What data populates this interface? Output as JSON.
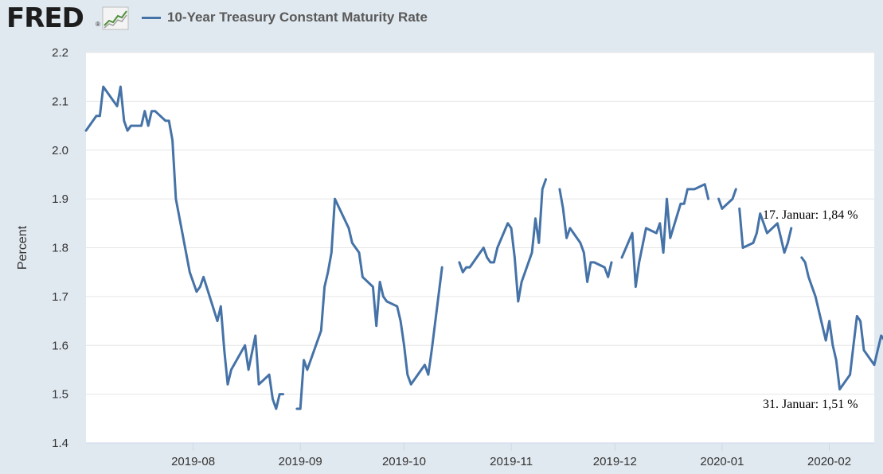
{
  "header": {
    "logo_text": "FRED",
    "logo_reg": "®",
    "legend_label": "10-Year Treasury Constant Maturity Rate"
  },
  "chart_data": {
    "type": "line",
    "ylabel": "Percent",
    "ylim": [
      1.4,
      2.2
    ],
    "yticks": [
      1.4,
      1.5,
      1.6,
      1.7,
      1.8,
      1.9,
      2.0,
      2.1,
      2.2
    ],
    "ytick_labels": [
      "1.4",
      "1.5",
      "1.6",
      "1.7",
      "1.8",
      "1.9",
      "2.0",
      "2.1",
      "2.2"
    ],
    "xlim": [
      "2019-07-01",
      "2020-02-14"
    ],
    "xticks": [
      "2019-08-01",
      "2019-09-01",
      "2019-10-01",
      "2019-11-01",
      "2019-12-01",
      "2020-01-01",
      "2020-02-01"
    ],
    "xtick_labels": [
      "2019-08",
      "2019-09",
      "2019-10",
      "2019-11",
      "2019-12",
      "2020-01",
      "2020-02"
    ],
    "grid": true,
    "line_color": "#4572a7",
    "series": [
      {
        "name": "10-Year Treasury Constant Maturity Rate",
        "segments": [
          [
            [
              "2019-07-01",
              2.04
            ],
            [
              "2019-07-02",
              2.05
            ],
            [
              "2019-07-04",
              2.07
            ],
            [
              "2019-07-05",
              2.07
            ],
            [
              "2019-07-06",
              2.13
            ],
            [
              "2019-07-10",
              2.09
            ],
            [
              "2019-07-11",
              2.13
            ],
            [
              "2019-07-12",
              2.06
            ],
            [
              "2019-07-13",
              2.04
            ],
            [
              "2019-07-14",
              2.05
            ],
            [
              "2019-07-17",
              2.05
            ],
            [
              "2019-07-18",
              2.08
            ],
            [
              "2019-07-19",
              2.05
            ],
            [
              "2019-07-20",
              2.08
            ],
            [
              "2019-07-21",
              2.08
            ],
            [
              "2019-07-24",
              2.06
            ],
            [
              "2019-07-25",
              2.06
            ],
            [
              "2019-07-26",
              2.02
            ],
            [
              "2019-07-27",
              1.9
            ],
            [
              "2019-07-31",
              1.75
            ],
            [
              "2019-08-02",
              1.71
            ],
            [
              "2019-08-03",
              1.72
            ],
            [
              "2019-08-04",
              1.74
            ],
            [
              "2019-08-08",
              1.65
            ],
            [
              "2019-08-09",
              1.68
            ],
            [
              "2019-08-10",
              1.59
            ],
            [
              "2019-08-11",
              1.52
            ],
            [
              "2019-08-12",
              1.55
            ],
            [
              "2019-08-16",
              1.6
            ],
            [
              "2019-08-17",
              1.55
            ],
            [
              "2019-08-19",
              1.62
            ],
            [
              "2019-08-20",
              1.52
            ],
            [
              "2019-08-23",
              1.54
            ],
            [
              "2019-08-24",
              1.49
            ],
            [
              "2019-08-25",
              1.47
            ],
            [
              "2019-08-26",
              1.5
            ],
            [
              "2019-08-27",
              1.5
            ]
          ],
          [
            [
              "2019-08-31",
              1.47
            ],
            [
              "2019-09-01",
              1.47
            ],
            [
              "2019-09-02",
              1.57
            ],
            [
              "2019-09-03",
              1.55
            ],
            [
              "2019-09-07",
              1.63
            ],
            [
              "2019-09-08",
              1.72
            ],
            [
              "2019-09-09",
              1.75
            ],
            [
              "2019-09-10",
              1.79
            ],
            [
              "2019-09-11",
              1.9
            ],
            [
              "2019-09-15",
              1.84
            ],
            [
              "2019-09-16",
              1.81
            ],
            [
              "2019-09-18",
              1.79
            ],
            [
              "2019-09-19",
              1.74
            ],
            [
              "2019-09-22",
              1.72
            ],
            [
              "2019-09-23",
              1.64
            ],
            [
              "2019-09-24",
              1.73
            ],
            [
              "2019-09-25",
              1.7
            ],
            [
              "2019-09-26",
              1.69
            ],
            [
              "2019-09-29",
              1.68
            ],
            [
              "2019-09-30",
              1.65
            ],
            [
              "2019-10-01",
              1.6
            ],
            [
              "2019-10-02",
              1.54
            ],
            [
              "2019-10-03",
              1.52
            ],
            [
              "2019-10-07",
              1.56
            ],
            [
              "2019-10-08",
              1.54
            ],
            [
              "2019-10-09",
              1.59
            ],
            [
              "2019-10-12",
              1.76
            ]
          ],
          [
            [
              "2019-10-17",
              1.77
            ],
            [
              "2019-10-18",
              1.75
            ],
            [
              "2019-10-19",
              1.76
            ],
            [
              "2019-10-20",
              1.76
            ],
            [
              "2019-10-24",
              1.8
            ],
            [
              "2019-10-25",
              1.78
            ],
            [
              "2019-10-26",
              1.77
            ],
            [
              "2019-10-27",
              1.77
            ],
            [
              "2019-10-28",
              1.8
            ],
            [
              "2019-10-31",
              1.85
            ],
            [
              "2019-11-01",
              1.84
            ],
            [
              "2019-11-02",
              1.78
            ],
            [
              "2019-11-03",
              1.69
            ],
            [
              "2019-11-04",
              1.73
            ],
            [
              "2019-11-07",
              1.79
            ],
            [
              "2019-11-08",
              1.86
            ],
            [
              "2019-11-09",
              1.81
            ],
            [
              "2019-11-10",
              1.92
            ],
            [
              "2019-11-11",
              1.94
            ]
          ],
          [
            [
              "2019-11-15",
              1.92
            ],
            [
              "2019-11-16",
              1.88
            ],
            [
              "2019-11-17",
              1.82
            ],
            [
              "2019-11-18",
              1.84
            ],
            [
              "2019-11-21",
              1.81
            ],
            [
              "2019-11-22",
              1.79
            ],
            [
              "2019-11-23",
              1.73
            ],
            [
              "2019-11-24",
              1.77
            ],
            [
              "2019-11-25",
              1.77
            ],
            [
              "2019-11-28",
              1.76
            ],
            [
              "2019-11-29",
              1.74
            ],
            [
              "2019-11-30",
              1.77
            ]
          ],
          [
            [
              "2019-12-03",
              1.78
            ],
            [
              "2019-12-06",
              1.83
            ],
            [
              "2019-12-07",
              1.72
            ],
            [
              "2019-12-08",
              1.77
            ],
            [
              "2019-12-10",
              1.84
            ],
            [
              "2019-12-13",
              1.83
            ],
            [
              "2019-12-14",
              1.85
            ],
            [
              "2019-12-15",
              1.79
            ],
            [
              "2019-12-16",
              1.9
            ],
            [
              "2019-12-17",
              1.82
            ],
            [
              "2019-12-20",
              1.89
            ],
            [
              "2019-12-21",
              1.89
            ],
            [
              "2019-12-22",
              1.92
            ],
            [
              "2019-12-24",
              1.92
            ],
            [
              "2019-12-27",
              1.93
            ],
            [
              "2019-12-28",
              1.9
            ]
          ],
          [
            [
              "2019-12-31",
              1.9
            ],
            [
              "2020-01-01",
              1.88
            ],
            [
              "2020-01-04",
              1.9
            ],
            [
              "2020-01-05",
              1.92
            ]
          ],
          [
            [
              "2020-01-06",
              1.88
            ],
            [
              "2020-01-07",
              1.8
            ],
            [
              "2020-01-10",
              1.81
            ],
            [
              "2020-01-11",
              1.83
            ],
            [
              "2020-01-12",
              1.87
            ],
            [
              "2020-01-13",
              1.85
            ],
            [
              "2020-01-14",
              1.83
            ],
            [
              "2020-01-17",
              1.85
            ],
            [
              "2020-01-18",
              1.82
            ],
            [
              "2020-01-19",
              1.79
            ],
            [
              "2020-01-20",
              1.81
            ],
            [
              "2020-01-21",
              1.84
            ]
          ],
          [
            [
              "2020-01-24",
              1.78
            ],
            [
              "2020-01-25",
              1.77
            ],
            [
              "2020-01-26",
              1.74
            ],
            [
              "2020-01-28",
              1.7
            ],
            [
              "2020-01-31",
              1.61
            ],
            [
              "2020-02-01",
              1.65
            ],
            [
              "2020-02-02",
              1.6
            ],
            [
              "2020-02-03",
              1.57
            ],
            [
              "2020-02-04",
              1.51
            ],
            [
              "2020-02-07",
              1.54
            ],
            [
              "2020-02-08",
              1.6
            ],
            [
              "2020-02-09",
              1.66
            ],
            [
              "2020-02-10",
              1.65
            ],
            [
              "2020-02-11",
              1.59
            ],
            [
              "2020-02-14",
              1.56
            ],
            [
              "2020-02-15",
              1.59
            ],
            [
              "2020-02-16",
              1.62
            ],
            [
              "2020-02-17",
              1.61
            ],
            [
              "2020-02-18",
              1.59
            ]
          ]
        ]
      }
    ],
    "annotations": [
      {
        "text": "17. Januar: 1,84 %",
        "x": "2020-01-21",
        "y": 1.84
      },
      {
        "text": "31. Januar: 1,51 %",
        "x": "2020-02-04",
        "y": 1.51
      }
    ]
  }
}
